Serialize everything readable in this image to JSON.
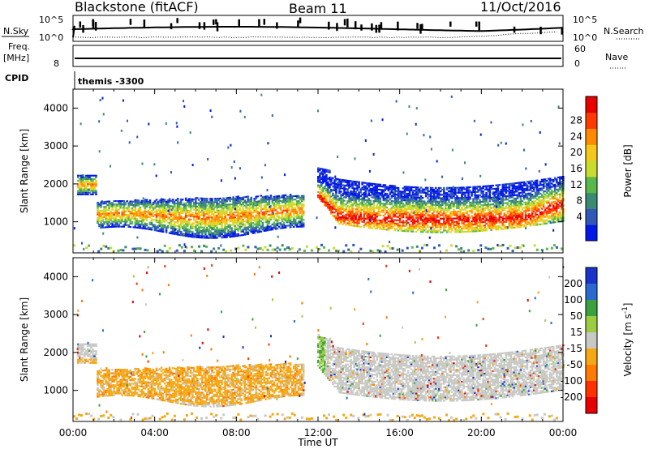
{
  "header": {
    "station": "Blackstone (fitACF)",
    "beam": "Beam 11",
    "date": "11/Oct/2016"
  },
  "top_panels": {
    "nsky_label": "N.Sky",
    "nsky_ticks": [
      "10^5",
      "10^0"
    ],
    "nsearch_label": "N.Search",
    "nsearch_ticks": [
      "10^5",
      "10^0"
    ],
    "freq_label_1": "Freq.",
    "freq_label_2": "[MHz]",
    "freq_ticks": [
      "8"
    ],
    "nave_label": "Nave",
    "nave_ticks": [
      "60",
      "0"
    ],
    "cpid_label": "CPID",
    "cpid_value": "themis -3300"
  },
  "chart_data": [
    {
      "type": "heatmap",
      "title": "",
      "xlabel": "Time UT",
      "ylabel": "Slant Range [km]",
      "x_tick_labels": [
        "00:00",
        "04:00",
        "08:00",
        "12:00",
        "16:00",
        "20:00",
        "00:00"
      ],
      "y_tick_labels": [
        "1000",
        "2000",
        "3000",
        "4000"
      ],
      "xlim": [
        "00:00",
        "24:00"
      ],
      "ylim": [
        180,
        4500
      ],
      "colorbar": {
        "label": "Power [dB]",
        "tick_labels": [
          "4",
          "8",
          "12",
          "16",
          "20",
          "24",
          "28"
        ],
        "range": [
          0,
          32
        ],
        "colors": [
          "#0018e8",
          "#2f58b8",
          "#3b8a72",
          "#58b84a",
          "#c8dc30",
          "#f5c81a",
          "#ff8a00",
          "#ff3a00",
          "#e80000"
        ]
      },
      "echo_bands": [
        {
          "t_start": 0.5,
          "t_end": 11.0,
          "range_low": 600,
          "range_high": 1800,
          "peak_db": 24
        },
        {
          "t_start": 11.8,
          "t_end": 24.0,
          "range_low": 700,
          "range_high": 2300,
          "peak_db": 30
        },
        {
          "t_start": 0.0,
          "t_end": 24.0,
          "range_low": 200,
          "range_high": 350,
          "peak_db": 12
        }
      ]
    },
    {
      "type": "heatmap",
      "title": "",
      "xlabel": "Time UT",
      "ylabel": "Slant Range [km]",
      "x_tick_labels": [
        "00:00",
        "04:00",
        "08:00",
        "12:00",
        "16:00",
        "20:00",
        "00:00"
      ],
      "y_tick_labels": [
        "1000",
        "2000",
        "3000",
        "4000"
      ],
      "xlim": [
        "00:00",
        "24:00"
      ],
      "ylim": [
        180,
        4500
      ],
      "colorbar": {
        "label": "Velocity [m s^-1]",
        "tick_labels": [
          "200",
          "100",
          "50",
          "15",
          "-15",
          "-50",
          "-100",
          "-200"
        ],
        "colors": [
          "#1a33c8",
          "#2a6ad0",
          "#3aa040",
          "#9ccc40",
          "#c8c8c4",
          "#f5a814",
          "#ff7a00",
          "#ff3000",
          "#e80000"
        ]
      },
      "echo_bands": [
        {
          "t_start": 0.5,
          "t_end": 11.0,
          "range_low": 600,
          "range_high": 1800,
          "dominant": "-50 to -15"
        },
        {
          "t_start": 11.8,
          "t_end": 24.0,
          "range_low": 600,
          "range_high": 2300,
          "dominant": "-15 to 15"
        }
      ]
    }
  ]
}
